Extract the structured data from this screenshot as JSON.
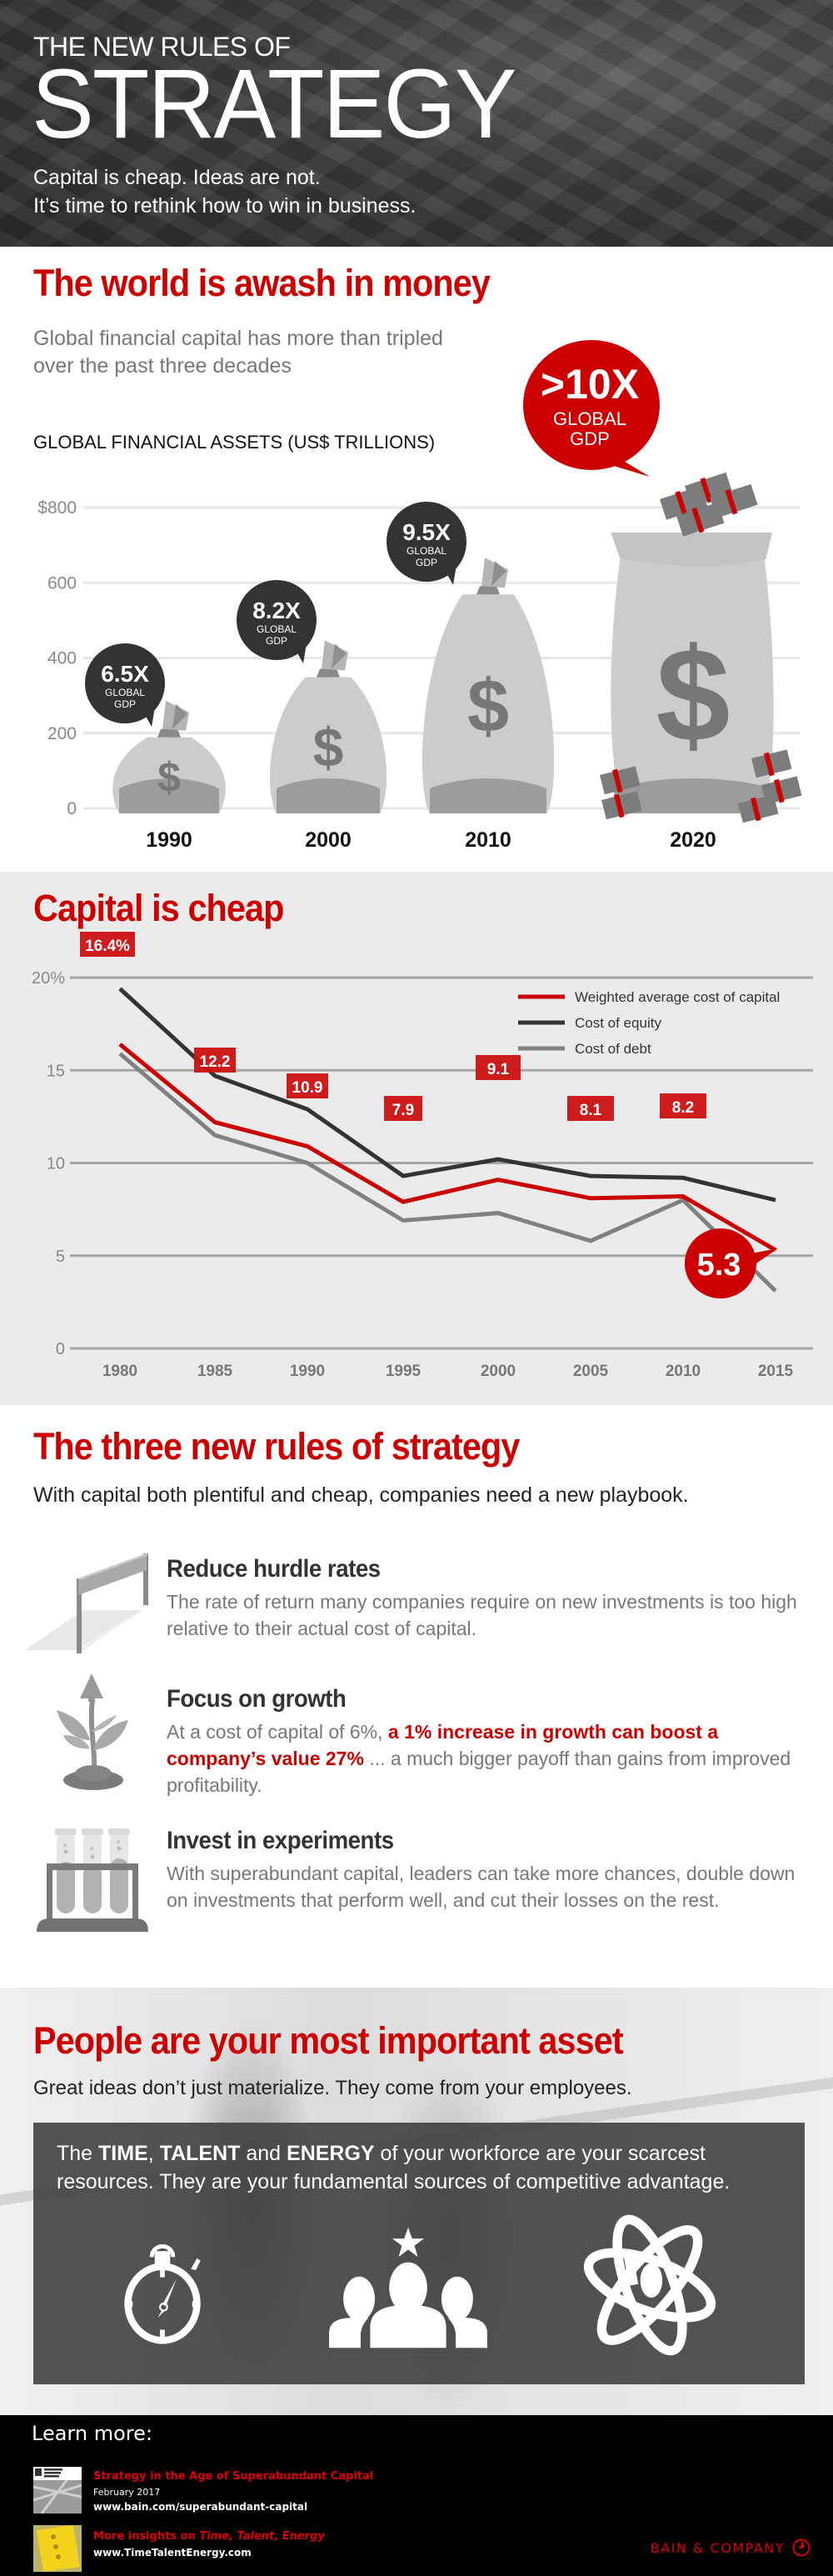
{
  "hero": {
    "pretitle": "THE NEW RULES OF",
    "title": "STRATEGY",
    "subtitle_line1": "Capital is cheap. Ideas are not.",
    "subtitle_line2": "It’s time to rethink how to win in business."
  },
  "money_section": {
    "heading": "The world is awash in money",
    "lead_line1": "Global financial capital has more than tripled",
    "lead_line2": "over the past three decades",
    "chart_title": "GLOBAL FINANCIAL ASSETS (US$ TRILLIONS)",
    "callout_2020": {
      "value": ">10X",
      "line1": "GLOBAL",
      "line2": "GDP"
    }
  },
  "cheap_section": {
    "heading": "Capital is cheap"
  },
  "rules_section": {
    "heading": "The three new rules of strategy",
    "lead": "With capital both plentiful and cheap, companies need a new playbook.",
    "rules": [
      {
        "icon": "hurdle-icon",
        "title": "Reduce hurdle rates",
        "body": "The rate of return many companies require on new investments is too high relative to their actual cost of capital."
      },
      {
        "icon": "sprout-arrow-icon",
        "title": "Focus on growth",
        "body_pre": "At a cost of capital of 6%, ",
        "body_highlight": "a 1% increase in growth can boost a company’s value 27%",
        "body_post": " ... a much bigger payoff than gains from improved profitability."
      },
      {
        "icon": "test-tubes-icon",
        "title": "Invest in experiments",
        "body": "With superabundant capital, leaders can take more chances, double down on investments that perform well, and cut their losses on the rest."
      }
    ]
  },
  "people_section": {
    "heading": "People are your most important asset",
    "lead": "Great ideas don’t just materialize. They come from your employees.",
    "panel": {
      "pre": "The ",
      "time": "TIME",
      "comma": ", ",
      "talent": "TALENT",
      "and": " and ",
      "energy": "ENERGY",
      "post": " of your workforce are your scarcest resources. They are your fundamental sources of competitive advantage."
    },
    "icons": [
      "stopwatch-icon",
      "team-star-icon",
      "atom-person-icon"
    ]
  },
  "footer": {
    "learn_more": "Learn more:",
    "refs": [
      {
        "thumb": "Harvard Business Review",
        "title": "Strategy in the Age of Superabundant Capital",
        "date": "February 2017",
        "url": "www.bain.com/superabundant-capital"
      },
      {
        "thumb": "Time Talent Energy book",
        "title_pre": "More insights on ",
        "title_em": "Time, Talent, Energy",
        "url": "www.TimeTalentEnergy.com"
      }
    ],
    "brand": "BAIN & COMPANY"
  },
  "colors": {
    "brand_red": "#cc0000",
    "equity_line": "#333333",
    "debt_line": "#808080",
    "chart_bg": "#ebebeb",
    "bag_fill": "#cccccc",
    "dollar_sign": "#777777"
  },
  "chart_data": [
    {
      "type": "bar",
      "title": "GLOBAL FINANCIAL ASSETS (US$ TRILLIONS)",
      "xlabel": "",
      "ylabel": "US$ trillions",
      "categories": [
        "1990",
        "2000",
        "2010",
        "2020"
      ],
      "values": [
        220,
        380,
        600,
        900
      ],
      "annotations": [
        "6.5X GLOBAL GDP",
        "8.2X GLOBAL GDP",
        "9.5X GLOBAL GDP",
        ">10X GLOBAL GDP"
      ],
      "yticks": [
        "$800",
        "600",
        "400",
        "200",
        "0"
      ],
      "ylim": [
        0,
        800
      ],
      "grid": true,
      "note": "Bars drawn as money bags; the 2020 bag extends above the $800 gridline"
    },
    {
      "type": "line",
      "title": "Capital is cheap",
      "x": [
        "1980",
        "1985",
        "1990",
        "1995",
        "2000",
        "2005",
        "2010",
        "2015"
      ],
      "yticks": [
        "20%",
        "15",
        "10",
        "5",
        "0"
      ],
      "ylim": [
        0,
        20
      ],
      "grid": true,
      "legend_position": "top-right",
      "series": [
        {
          "name": "Weighted average cost of capital",
          "color": "#cc0000",
          "values": [
            16.4,
            12.2,
            10.9,
            7.9,
            9.1,
            8.1,
            8.2,
            5.3
          ],
          "labels": [
            "16.4%",
            "12.2",
            "10.9",
            "7.9",
            "9.1",
            "8.1",
            "8.2",
            "5.3"
          ]
        },
        {
          "name": "Cost of equity",
          "color": "#333333",
          "values": [
            19.4,
            14.7,
            12.9,
            9.3,
            10.2,
            9.3,
            9.2,
            8.0
          ]
        },
        {
          "name": "Cost of debt",
          "color": "#808080",
          "values": [
            15.9,
            11.5,
            10.0,
            6.9,
            7.3,
            5.8,
            8.0,
            3.1
          ]
        }
      ]
    }
  ]
}
